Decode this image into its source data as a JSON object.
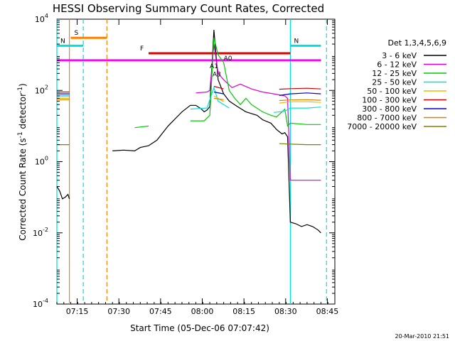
{
  "chart_data": {
    "type": "line",
    "title": "HESSI Observing Summary Count Rates, Corrected",
    "xlabel": "Start Time (05-Dec-06 07:07:42)",
    "ylabel": "Corrected Count Rate (s⁻¹ detector⁻¹)",
    "ylabel_parts": {
      "main": "Corrected Count Rate (s",
      "sup1": "-1",
      "mid": " detector",
      "sup2": "-1",
      "end": ")"
    },
    "yscale": "log",
    "ylim": [
      0.0001,
      10000
    ],
    "xlim_minutes": [
      0,
      100
    ],
    "x_start_time": "07:07:42",
    "x_ticks": [
      {
        "label": "07:15",
        "min": 7.3
      },
      {
        "label": "07:30",
        "min": 22.3
      },
      {
        "label": "07:45",
        "min": 37.3
      },
      {
        "label": "08:00",
        "min": 52.3
      },
      {
        "label": "08:15",
        "min": 67.3
      },
      {
        "label": "08:30",
        "min": 82.3
      },
      {
        "label": "08:45",
        "min": 97.3
      }
    ],
    "y_ticks": [
      {
        "base": "10",
        "exp": "4",
        "value": 10000
      },
      {
        "base": "10",
        "exp": "2",
        "value": 100
      },
      {
        "base": "10",
        "exp": "0",
        "value": 1
      },
      {
        "base": "10",
        "exp": "-2",
        "value": 0.01
      },
      {
        "base": "10",
        "exp": "-4",
        "value": 0.0001
      }
    ],
    "legend_title": "Det 1,3,4,5,6,9",
    "legend_position": "right",
    "timestamp": "20-Mar-2010 21:51",
    "series": [
      {
        "name": "3 - 6 keV",
        "color": "#000000",
        "points": [
          [
            0,
            0.2
          ],
          [
            1,
            0.15
          ],
          [
            2,
            0.09
          ],
          [
            3,
            0.1
          ],
          [
            4,
            0.12
          ],
          [
            4.5,
            0.09
          ],
          [
            20,
            2.0
          ],
          [
            24,
            2.1
          ],
          [
            28,
            2.0
          ],
          [
            30,
            2.5
          ],
          [
            33,
            2.8
          ],
          [
            36,
            4
          ],
          [
            40,
            10
          ],
          [
            45,
            25
          ],
          [
            48,
            38
          ],
          [
            50,
            38
          ],
          [
            52,
            30
          ],
          [
            53,
            25
          ],
          [
            54,
            28
          ],
          [
            55,
            35
          ],
          [
            56.5,
            5000
          ],
          [
            58,
            200
          ],
          [
            60,
            80
          ],
          [
            62,
            50
          ],
          [
            65,
            35
          ],
          [
            68,
            25
          ],
          [
            72,
            20
          ],
          [
            74,
            15
          ],
          [
            77,
            12
          ],
          [
            79,
            8
          ],
          [
            81,
            6
          ],
          [
            82,
            6.5
          ],
          [
            83,
            5
          ],
          [
            84,
            0.02
          ],
          [
            86,
            0.018
          ],
          [
            88,
            0.015
          ],
          [
            90,
            0.017
          ],
          [
            92,
            0.015
          ],
          [
            94,
            0.012
          ],
          [
            95,
            0.01
          ]
        ]
      },
      {
        "name": "6 - 12 keV",
        "color": "#d800d8",
        "points": [
          [
            0,
            70
          ],
          [
            4.5,
            70
          ],
          [
            20,
            80
          ],
          [
            30,
            75
          ],
          [
            40,
            80
          ],
          [
            50,
            85
          ],
          [
            54,
            90
          ],
          [
            55,
            100
          ],
          [
            56.5,
            2000
          ],
          [
            58,
            300
          ],
          [
            60,
            200
          ],
          [
            63,
            120
          ],
          [
            66,
            150
          ],
          [
            70,
            110
          ],
          [
            74,
            90
          ],
          [
            78,
            80
          ],
          [
            82,
            70
          ],
          [
            83,
            60
          ],
          [
            84,
            0.3
          ],
          [
            90,
            0.3
          ],
          [
            95,
            0.3
          ]
        ]
      },
      {
        "name": "12 - 25 keV",
        "color": "#00cc00",
        "points": [
          [
            0,
            60
          ],
          [
            4.5,
            60
          ],
          [
            20,
            10
          ],
          [
            28,
            9
          ],
          [
            33,
            10
          ],
          [
            40,
            12
          ],
          [
            48,
            14
          ],
          [
            53,
            14
          ],
          [
            55,
            20
          ],
          [
            56.5,
            3000
          ],
          [
            58,
            1000
          ],
          [
            60,
            600
          ],
          [
            62,
            100
          ],
          [
            64,
            60
          ],
          [
            66,
            40
          ],
          [
            68,
            60
          ],
          [
            70,
            40
          ],
          [
            74,
            25
          ],
          [
            77,
            20
          ],
          [
            79,
            18
          ],
          [
            81,
            25
          ],
          [
            82,
            30
          ],
          [
            83,
            10
          ],
          [
            84,
            12
          ],
          [
            90,
            11
          ],
          [
            95,
            11
          ]
        ]
      },
      {
        "name": "25 - 50 keV",
        "color": "#00e0e0",
        "points": [
          [
            0,
            70
          ],
          [
            4.5,
            70
          ],
          [
            20,
            30
          ],
          [
            30,
            26
          ],
          [
            40,
            28
          ],
          [
            48,
            30
          ],
          [
            54,
            32
          ],
          [
            56.5,
            120
          ],
          [
            58,
            50
          ],
          [
            62,
            32
          ],
          [
            70,
            26
          ],
          [
            78,
            24
          ],
          [
            82,
            26
          ],
          [
            84,
            32
          ],
          [
            90,
            32
          ],
          [
            95,
            34
          ]
        ]
      },
      {
        "name": "50 - 100 keV",
        "color": "#e0c000",
        "points": [
          [
            0,
            60
          ],
          [
            4.5,
            60
          ],
          [
            20,
            45
          ],
          [
            30,
            42
          ],
          [
            40,
            44
          ],
          [
            50,
            46
          ],
          [
            56.5,
            70
          ],
          [
            60,
            48
          ],
          [
            70,
            44
          ],
          [
            80,
            44
          ],
          [
            84,
            48
          ],
          [
            90,
            48
          ],
          [
            95,
            46
          ]
        ]
      },
      {
        "name": "100 - 300 keV",
        "color": "#d00000",
        "points": [
          [
            0,
            90
          ],
          [
            4.5,
            90
          ],
          [
            20,
            110
          ],
          [
            30,
            100
          ],
          [
            40,
            100
          ],
          [
            50,
            102
          ],
          [
            56.5,
            130
          ],
          [
            60,
            110
          ],
          [
            70,
            105
          ],
          [
            80,
            108
          ],
          [
            84,
            112
          ],
          [
            90,
            115
          ],
          [
            95,
            110
          ]
        ]
      },
      {
        "name": "300 - 800 keV",
        "color": "#0000c8",
        "points": [
          [
            0,
            80
          ],
          [
            4.5,
            80
          ],
          [
            20,
            80
          ],
          [
            30,
            70
          ],
          [
            40,
            72
          ],
          [
            50,
            75
          ],
          [
            56.5,
            90
          ],
          [
            60,
            80
          ],
          [
            70,
            72
          ],
          [
            80,
            72
          ],
          [
            84,
            80
          ],
          [
            90,
            85
          ],
          [
            95,
            80
          ]
        ]
      },
      {
        "name": "800 - 7000 keV",
        "color": "#e08000",
        "points": [
          [
            0,
            55
          ],
          [
            4.5,
            55
          ],
          [
            20,
            55
          ],
          [
            30,
            50
          ],
          [
            40,
            52
          ],
          [
            50,
            52
          ],
          [
            56.5,
            60
          ],
          [
            60,
            55
          ],
          [
            70,
            50
          ],
          [
            80,
            52
          ],
          [
            84,
            54
          ],
          [
            90,
            55
          ],
          [
            95,
            53
          ]
        ]
      },
      {
        "name": "7000 - 20000 keV",
        "color": "#808000",
        "points": [
          [
            0,
            3
          ],
          [
            4.5,
            3
          ],
          [
            20,
            3
          ],
          [
            30,
            3
          ],
          [
            40,
            3.2
          ],
          [
            50,
            3
          ],
          [
            60,
            3.2
          ],
          [
            70,
            3
          ],
          [
            80,
            3.2
          ],
          [
            84,
            3.1
          ],
          [
            90,
            3
          ],
          [
            95,
            3
          ]
        ]
      }
    ],
    "bands": [
      {
        "label": "S",
        "color": "#ff8000",
        "x0": 5,
        "x1": 18,
        "value": 3000
      },
      {
        "label": "N",
        "color": "#00e0e0",
        "x0": 0,
        "x1": 9.5,
        "value": 1800
      },
      {
        "label": "N",
        "color": "#00e0e0",
        "x0": 84,
        "x1": 95,
        "value": 1800
      },
      {
        "label": "F",
        "color": "#e00000",
        "x0": 33,
        "x1": 84,
        "value": 1100
      },
      {
        "label": "",
        "color": "#ff00ff",
        "x0": 0,
        "x1": 95,
        "value": 700
      }
    ],
    "annotations": [
      {
        "label": "A1",
        "color": "#ff00ff",
        "x": 55,
        "value": 420
      },
      {
        "label": "A0",
        "color": "#ff00ff",
        "x": 60,
        "value": 700
      },
      {
        "label": "A3",
        "color": "#ff00ff",
        "x": 56,
        "value": 250
      }
    ],
    "vertical_lines": [
      {
        "x": 0,
        "color": "#00e0e0",
        "style": "solid"
      },
      {
        "x": 4.5,
        "color": "#ff8000",
        "style": "solid"
      },
      {
        "x": 9.5,
        "color": "#00e0e0",
        "style": "dashed"
      },
      {
        "x": 18,
        "color": "#ff8000",
        "style": "dashed"
      },
      {
        "x": 84,
        "color": "#00e0e0",
        "style": "solid"
      },
      {
        "x": 97,
        "color": "#00e0e0",
        "style": "dashed"
      }
    ]
  }
}
